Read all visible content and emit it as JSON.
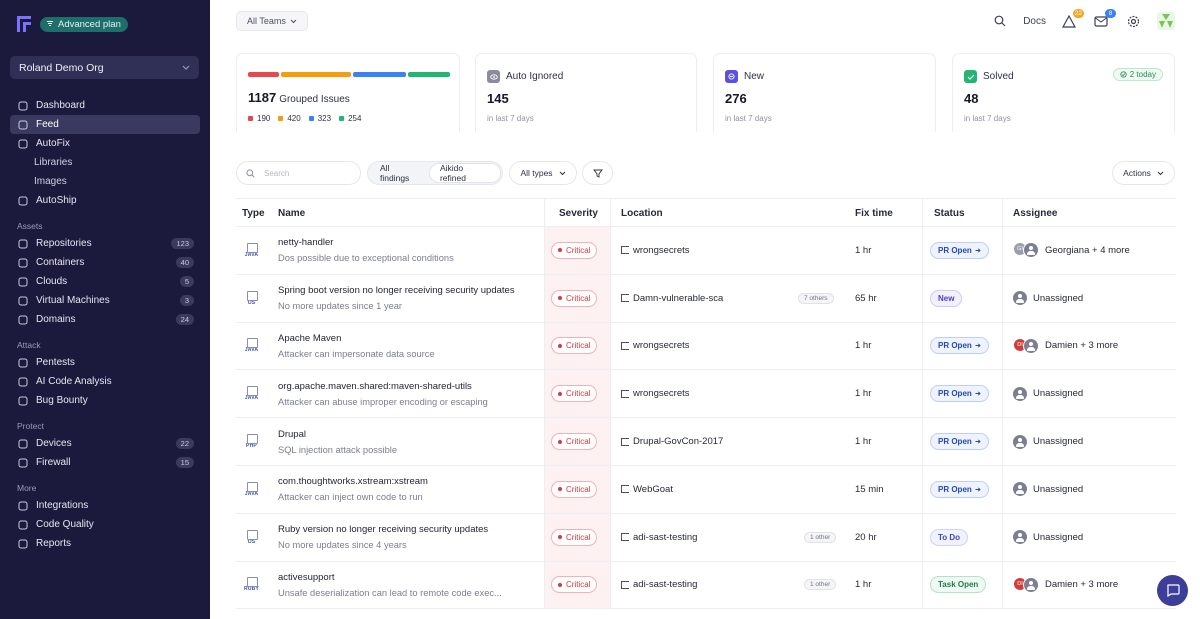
{
  "sidebar": {
    "plan_badge": "Advanced plan",
    "org": "Roland Demo Org",
    "items_top": [
      {
        "label": "Dashboard",
        "icon": "grid-icon"
      },
      {
        "label": "Feed",
        "icon": "inbox-icon",
        "active": true
      },
      {
        "label": "AutoFix",
        "icon": "sparkle-icon"
      },
      {
        "label": "Libraries",
        "sub": true
      },
      {
        "label": "Images",
        "sub": true
      },
      {
        "label": "AutoShip",
        "icon": "ship-icon"
      }
    ],
    "sections": [
      {
        "title": "Assets",
        "items": [
          {
            "label": "Repositories",
            "icon": "repo-icon",
            "count": "123"
          },
          {
            "label": "Containers",
            "icon": "container-icon",
            "count": "40"
          },
          {
            "label": "Clouds",
            "icon": "cloud-icon",
            "count": "5"
          },
          {
            "label": "Virtual Machines",
            "icon": "vm-icon",
            "count": "3"
          },
          {
            "label": "Domains",
            "icon": "globe-icon",
            "count": "24"
          }
        ]
      },
      {
        "title": "Attack",
        "items": [
          {
            "label": "Pentests",
            "icon": "target-icon"
          },
          {
            "label": "AI Code Analysis",
            "icon": "ai-icon"
          },
          {
            "label": "Bug Bounty",
            "icon": "bug-icon"
          }
        ]
      },
      {
        "title": "Protect",
        "items": [
          {
            "label": "Devices",
            "icon": "device-icon",
            "count": "22"
          },
          {
            "label": "Firewall",
            "icon": "firewall-icon",
            "count": "15"
          }
        ]
      },
      {
        "title": "More",
        "items": [
          {
            "label": "Integrations",
            "icon": "integrations-icon"
          },
          {
            "label": "Code Quality",
            "icon": "quality-icon"
          },
          {
            "label": "Reports",
            "icon": "reports-icon"
          }
        ]
      }
    ]
  },
  "topbar": {
    "teams": "All Teams",
    "docs": "Docs",
    "alerts_count": "22",
    "mail_count": "8"
  },
  "cards": {
    "grouped": {
      "value": "1187",
      "label": "Grouped Issues",
      "legend": [
        {
          "value": "190",
          "color": "#e5484d"
        },
        {
          "value": "420",
          "color": "#f59e0b"
        },
        {
          "value": "323",
          "color": "#3b82f6"
        },
        {
          "value": "254",
          "color": "#22b573"
        }
      ]
    },
    "auto_ignored": {
      "title": "Auto Ignored",
      "value": "145",
      "sub": "in last 7 days"
    },
    "new": {
      "title": "New",
      "value": "276",
      "sub": "in last 7 days"
    },
    "solved": {
      "title": "Solved",
      "value": "48",
      "sub": "in last 7 days",
      "badge": "2 today"
    }
  },
  "filters": {
    "search_placeholder": "Search",
    "seg_all": "All findings",
    "seg_refined": "Aikido refined",
    "types": "All types",
    "actions": "Actions"
  },
  "table": {
    "headers": {
      "type": "Type",
      "name": "Name",
      "severity": "Severity",
      "location": "Location",
      "fix": "Fix time",
      "status": "Status",
      "assignee": "Assignee"
    },
    "rows": [
      {
        "type": "JAVA",
        "name": "netty-handler",
        "desc": "Dos possible due to exceptional conditions",
        "severity": "Critical",
        "location": "wrongsecrets",
        "others": "",
        "fix": "1 hr",
        "status": "PR Open",
        "status_kind": "pr",
        "assignee": "Georgiana + 4 more",
        "avatar": "pair",
        "initials": "GI",
        "avatar_color": "#9b9eb0"
      },
      {
        "type": "OS",
        "name": "Spring boot version no longer receiving security updates",
        "desc": "No more updates since 1 year",
        "severity": "Critical",
        "location": "Damn-vulnerable-sca",
        "others": "7 others",
        "fix": "65 hr",
        "status": "New",
        "status_kind": "new",
        "assignee": "Unassigned",
        "avatar": "gray"
      },
      {
        "type": "JAVA",
        "name": "Apache Maven",
        "desc": "Attacker can impersonate data source",
        "severity": "Critical",
        "location": "wrongsecrets",
        "others": "",
        "fix": "1 hr",
        "status": "PR Open",
        "status_kind": "pr",
        "assignee": "Damien + 3 more",
        "avatar": "pair",
        "initials": "DI",
        "avatar_color": "#d33b3b"
      },
      {
        "type": "JAVA",
        "name": "org.apache.maven.shared:maven-shared-utils",
        "desc": "Attacker can abuse improper encoding or escaping",
        "severity": "Critical",
        "location": "wrongsecrets",
        "others": "",
        "fix": "1 hr",
        "status": "PR Open",
        "status_kind": "pr",
        "assignee": "Unassigned",
        "avatar": "gray"
      },
      {
        "type": "PHP",
        "name": "Drupal",
        "desc": "SQL injection attack possible",
        "severity": "Critical",
        "location": "Drupal-GovCon-2017",
        "others": "",
        "fix": "1 hr",
        "status": "PR Open",
        "status_kind": "pr",
        "assignee": "Unassigned",
        "avatar": "gray"
      },
      {
        "type": "JAVA",
        "name": "com.thoughtworks.xstream:xstream",
        "desc": "Attacker can inject own code to run",
        "severity": "Critical",
        "location": "WebGoat",
        "others": "",
        "fix": "15 min",
        "status": "PR Open",
        "status_kind": "pr",
        "assignee": "Unassigned",
        "avatar": "gray"
      },
      {
        "type": "OS",
        "name": "Ruby version no longer receiving security updates",
        "desc": "No more updates since 4 years",
        "severity": "Critical",
        "location": "adi-sast-testing",
        "others": "1 other",
        "fix": "20 hr",
        "status": "To Do",
        "status_kind": "todo",
        "assignee": "Unassigned",
        "avatar": "gray"
      },
      {
        "type": "RUBY",
        "name": "activesupport",
        "desc": "Unsafe deserialization can lead to remote code exec...",
        "severity": "Critical",
        "location": "adi-sast-testing",
        "others": "1 other",
        "fix": "1 hr",
        "status": "Task Open",
        "status_kind": "task",
        "assignee": "Damien + 3 more",
        "avatar": "pair",
        "initials": "DI",
        "avatar_color": "#d33b3b"
      }
    ]
  }
}
